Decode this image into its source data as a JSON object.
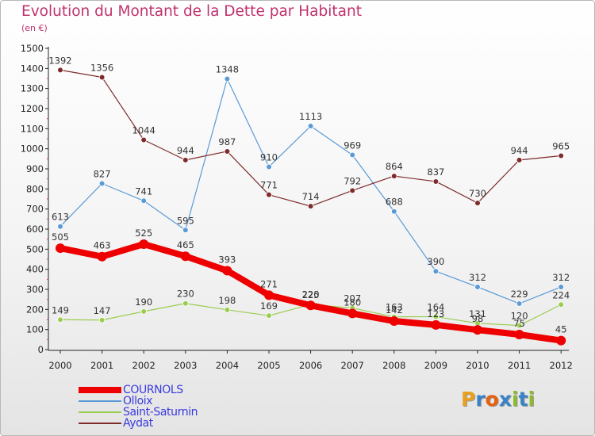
{
  "title": "Evolution du Montant de la Dette par Habitant",
  "subtitle": "(en €)",
  "brand": {
    "letters": [
      "P",
      "r",
      "o",
      "x",
      "i",
      "t",
      "i"
    ],
    "colors": [
      "#e8a020",
      "#3a82c8",
      "#e86010",
      "#3a82c8",
      "#8bbc2a",
      "#3a82c8",
      "#8bbc2a"
    ]
  },
  "chart_data": {
    "type": "line",
    "title": "Evolution du Montant de la Dette par Habitant",
    "ylabel": "(en €)",
    "xlabel": "",
    "x": [
      "2000",
      "2001",
      "2002",
      "2003",
      "2004",
      "2005",
      "2006",
      "2007",
      "2008",
      "2009",
      "2010",
      "2011",
      "2012"
    ],
    "ylim": [
      0,
      1500
    ],
    "yticks": [
      0,
      100,
      200,
      300,
      400,
      500,
      600,
      700,
      800,
      900,
      1000,
      1100,
      1200,
      1300,
      1400,
      1500
    ],
    "grid": false,
    "legend_position": "bottom-left",
    "series": [
      {
        "name": "COURNOLS",
        "color": "#ee0000",
        "values": [
          505,
          463,
          525,
          465,
          393,
          271,
          220,
          180,
          142,
          123,
          98,
          75,
          45
        ]
      },
      {
        "name": "Olloix",
        "color": "#5a9ad6",
        "values": [
          613,
          827,
          741,
          595,
          1348,
          910,
          1113,
          969,
          688,
          390,
          312,
          229,
          312
        ]
      },
      {
        "name": "Saint-Saturnin",
        "color": "#9acd50",
        "values": [
          149,
          147,
          190,
          230,
          198,
          169,
          225,
          207,
          163,
          164,
          131,
          120,
          224
        ]
      },
      {
        "name": "Aydat",
        "color": "#7e2b2b",
        "values": [
          1392,
          1356,
          1044,
          944,
          987,
          771,
          714,
          792,
          864,
          837,
          730,
          944,
          965
        ]
      }
    ]
  }
}
